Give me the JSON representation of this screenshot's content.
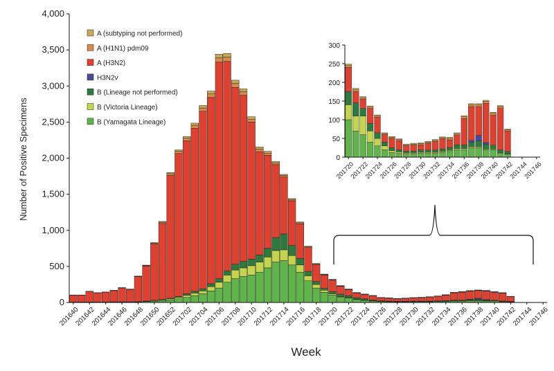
{
  "chart_data": [
    {
      "type": "bar",
      "stacked": true,
      "title": "",
      "xlabel": "Week",
      "ylabel": "Number of Positive Specimens",
      "ylim": [
        0,
        4000
      ],
      "yticks": [
        0,
        500,
        1000,
        1500,
        2000,
        2500,
        3000,
        3500,
        4000
      ],
      "ytick_labels": [
        "0",
        "500",
        "1,000",
        "1,500",
        "2,000",
        "2,500",
        "3,000",
        "3,500",
        "4,000"
      ],
      "tick_labels": [
        "201640",
        "201642",
        "201644",
        "201646",
        "201648",
        "201650",
        "201652",
        "201702",
        "201704",
        "201706",
        "201708",
        "201710",
        "201712",
        "201714",
        "201716",
        "201718",
        "201720",
        "201722",
        "201724",
        "201726",
        "201728",
        "201730",
        "201732",
        "201734",
        "201736",
        "201738",
        "201740",
        "201742",
        "201744",
        "201746"
      ],
      "categories": [
        "201640",
        "201641",
        "201642",
        "201643",
        "201644",
        "201645",
        "201646",
        "201647",
        "201648",
        "201649",
        "201650",
        "201651",
        "201652",
        "201701",
        "201702",
        "201703",
        "201704",
        "201705",
        "201706",
        "201707",
        "201708",
        "201709",
        "201710",
        "201711",
        "201712",
        "201713",
        "201714",
        "201715",
        "201716",
        "201717",
        "201718",
        "201719",
        "201720",
        "201721",
        "201722",
        "201723",
        "201724",
        "201725",
        "201726",
        "201727",
        "201728",
        "201729",
        "201730",
        "201731",
        "201732",
        "201733",
        "201734",
        "201735",
        "201736",
        "201737",
        "201738",
        "201739",
        "201740",
        "201741",
        "201742",
        "201743",
        "201744",
        "201745",
        "201746"
      ],
      "legend_position": "top-left",
      "series": [
        {
          "name": "B (Yamagata Lineage)",
          "color": "#5fb548",
          "values": [
            4,
            4,
            5,
            5,
            5,
            6,
            6,
            6,
            8,
            12,
            18,
            25,
            35,
            50,
            70,
            95,
            120,
            160,
            200,
            280,
            330,
            360,
            380,
            420,
            480,
            560,
            580,
            520,
            420,
            300,
            200,
            140,
            100,
            70,
            60,
            40,
            30,
            20,
            12,
            10,
            8,
            8,
            10,
            10,
            10,
            12,
            15,
            20,
            20,
            25,
            25,
            20,
            20,
            10,
            8,
            0,
            0,
            0,
            0
          ]
        },
        {
          "name": "B (Victoria Lineage)",
          "color": "#c4d44b",
          "values": [
            1,
            1,
            1,
            1,
            1,
            2,
            2,
            2,
            3,
            5,
            8,
            12,
            15,
            20,
            30,
            35,
            40,
            60,
            80,
            100,
            120,
            120,
            130,
            140,
            150,
            160,
            150,
            130,
            100,
            70,
            50,
            30,
            20,
            10,
            8,
            6,
            5,
            4,
            3,
            3,
            3,
            3,
            3,
            3,
            3,
            3,
            3,
            3,
            3,
            3,
            3,
            2,
            2,
            2,
            1,
            0,
            0,
            0,
            0
          ]
        },
        {
          "name": "B (Lineage not performed)",
          "color": "#2e7a3c",
          "values": [
            1,
            1,
            1,
            1,
            1,
            1,
            2,
            2,
            2,
            3,
            5,
            8,
            10,
            15,
            20,
            25,
            30,
            40,
            50,
            60,
            80,
            90,
            90,
            100,
            120,
            180,
            220,
            140,
            90,
            60,
            40,
            25,
            30,
            35,
            25,
            20,
            15,
            10,
            8,
            6,
            5,
            5,
            6,
            6,
            6,
            7,
            8,
            10,
            10,
            12,
            15,
            12,
            10,
            8,
            6,
            0,
            0,
            0,
            0
          ]
        },
        {
          "name": "H3N2v",
          "color": "#4b4b9c",
          "values": [
            0,
            0,
            0,
            0,
            0,
            0,
            0,
            0,
            0,
            0,
            0,
            0,
            0,
            0,
            0,
            0,
            0,
            0,
            0,
            0,
            0,
            0,
            0,
            0,
            0,
            0,
            0,
            0,
            0,
            0,
            0,
            0,
            0,
            0,
            0,
            0,
            0,
            0,
            0,
            0,
            0,
            0,
            0,
            0,
            0,
            0,
            0,
            0,
            0,
            5,
            15,
            5,
            0,
            0,
            0,
            0,
            0,
            0,
            0
          ]
        },
        {
          "name": "A (H3N2)",
          "color": "#e04030",
          "values": [
            95,
            95,
            145,
            125,
            135,
            155,
            190,
            170,
            345,
            485,
            780,
            1050,
            1700,
            1980,
            2120,
            2260,
            2460,
            2580,
            3000,
            2900,
            2450,
            2300,
            1900,
            1430,
            1290,
            1010,
            790,
            620,
            480,
            330,
            235,
            185,
            160,
            110,
            85,
            65,
            60,
            58,
            42,
            40,
            35,
            40,
            44,
            48,
            56,
            63,
            75,
            100,
            110,
            112,
            107,
            120,
            110,
            108,
            65,
            0,
            0,
            0,
            0
          ]
        },
        {
          "name": "A (H1N1) pdm09",
          "color": "#d88a4a",
          "values": [
            2,
            2,
            3,
            3,
            3,
            3,
            4,
            4,
            5,
            8,
            12,
            18,
            25,
            30,
            35,
            40,
            45,
            50,
            60,
            60,
            55,
            50,
            40,
            35,
            30,
            25,
            20,
            18,
            15,
            12,
            10,
            8,
            6,
            5,
            5,
            4,
            4,
            3,
            3,
            3,
            3,
            3,
            3,
            3,
            3,
            3,
            4,
            4,
            5,
            5,
            5,
            5,
            5,
            5,
            3,
            0,
            0,
            0,
            0
          ]
        },
        {
          "name": "A (subtyping not performed)",
          "color": "#c8a955",
          "values": [
            1,
            1,
            1,
            1,
            1,
            2,
            2,
            2,
            3,
            5,
            7,
            10,
            15,
            20,
            25,
            30,
            35,
            40,
            50,
            50,
            45,
            40,
            35,
            30,
            25,
            20,
            15,
            12,
            10,
            8,
            6,
            5,
            4,
            4,
            3,
            3,
            3,
            2,
            2,
            2,
            2,
            2,
            2,
            2,
            2,
            2,
            3,
            3,
            3,
            3,
            3,
            3,
            3,
            3,
            2,
            0,
            0,
            0,
            0
          ]
        }
      ]
    },
    {
      "type": "bar",
      "stacked": true,
      "title": "",
      "xlabel": "",
      "ylabel": "",
      "ylim": [
        0,
        300
      ],
      "yticks": [
        0,
        50,
        100,
        150,
        200,
        250,
        300
      ],
      "ytick_labels": [
        "0",
        "50",
        "100",
        "150",
        "200",
        "250",
        "300"
      ],
      "tick_labels": [
        "201720",
        "201722",
        "201724",
        "201726",
        "201728",
        "201730",
        "201732",
        "201734",
        "201736",
        "201738",
        "201740",
        "201742",
        "201744",
        "201746"
      ],
      "categories": [
        "201720",
        "201721",
        "201722",
        "201723",
        "201724",
        "201725",
        "201726",
        "201727",
        "201728",
        "201729",
        "201730",
        "201731",
        "201732",
        "201733",
        "201734",
        "201735",
        "201736",
        "201737",
        "201738",
        "201739",
        "201740",
        "201741",
        "201742",
        "201743",
        "201744",
        "201745",
        "201746"
      ],
      "series": [
        {
          "name": "B (Yamagata Lineage)",
          "color": "#5fb548",
          "values": [
            100,
            70,
            60,
            40,
            30,
            20,
            12,
            10,
            8,
            8,
            10,
            10,
            10,
            12,
            15,
            20,
            20,
            25,
            25,
            20,
            20,
            10,
            8,
            0,
            0,
            0,
            0
          ]
        },
        {
          "name": "B (Victoria Lineage)",
          "color": "#c4d44b",
          "values": [
            40,
            40,
            50,
            30,
            20,
            10,
            5,
            4,
            3,
            3,
            3,
            3,
            3,
            3,
            3,
            3,
            3,
            3,
            3,
            2,
            2,
            2,
            1,
            0,
            0,
            0,
            0
          ]
        },
        {
          "name": "B (Lineage not performed)",
          "color": "#2e7a3c",
          "values": [
            35,
            35,
            20,
            20,
            15,
            10,
            8,
            6,
            5,
            5,
            6,
            6,
            6,
            7,
            8,
            10,
            10,
            12,
            15,
            12,
            10,
            8,
            6,
            0,
            0,
            0,
            0
          ]
        },
        {
          "name": "H3N2v",
          "color": "#4b4b9c",
          "values": [
            0,
            0,
            0,
            0,
            0,
            0,
            0,
            0,
            0,
            0,
            0,
            0,
            0,
            0,
            0,
            0,
            0,
            5,
            15,
            5,
            0,
            0,
            0,
            0,
            0,
            0,
            0
          ]
        },
        {
          "name": "A (H3N2)",
          "color": "#e04030",
          "values": [
            65,
            30,
            25,
            40,
            42,
            20,
            25,
            24,
            14,
            16,
            14,
            18,
            23,
            27,
            20,
            25,
            70,
            90,
            77,
            105,
            80,
            110,
            55,
            0,
            0,
            0,
            0
          ]
        },
        {
          "name": "A (H1N1) pdm09",
          "color": "#d88a4a",
          "values": [
            5,
            5,
            4,
            4,
            3,
            3,
            3,
            3,
            3,
            3,
            3,
            3,
            3,
            3,
            4,
            4,
            5,
            5,
            5,
            5,
            5,
            5,
            3,
            0,
            0,
            0,
            0
          ]
        },
        {
          "name": "A (subtyping not performed)",
          "color": "#c8a955",
          "values": [
            4,
            4,
            3,
            3,
            3,
            2,
            2,
            2,
            2,
            2,
            2,
            2,
            2,
            2,
            3,
            3,
            3,
            3,
            3,
            3,
            3,
            3,
            2,
            0,
            0,
            0,
            0
          ]
        }
      ]
    }
  ]
}
